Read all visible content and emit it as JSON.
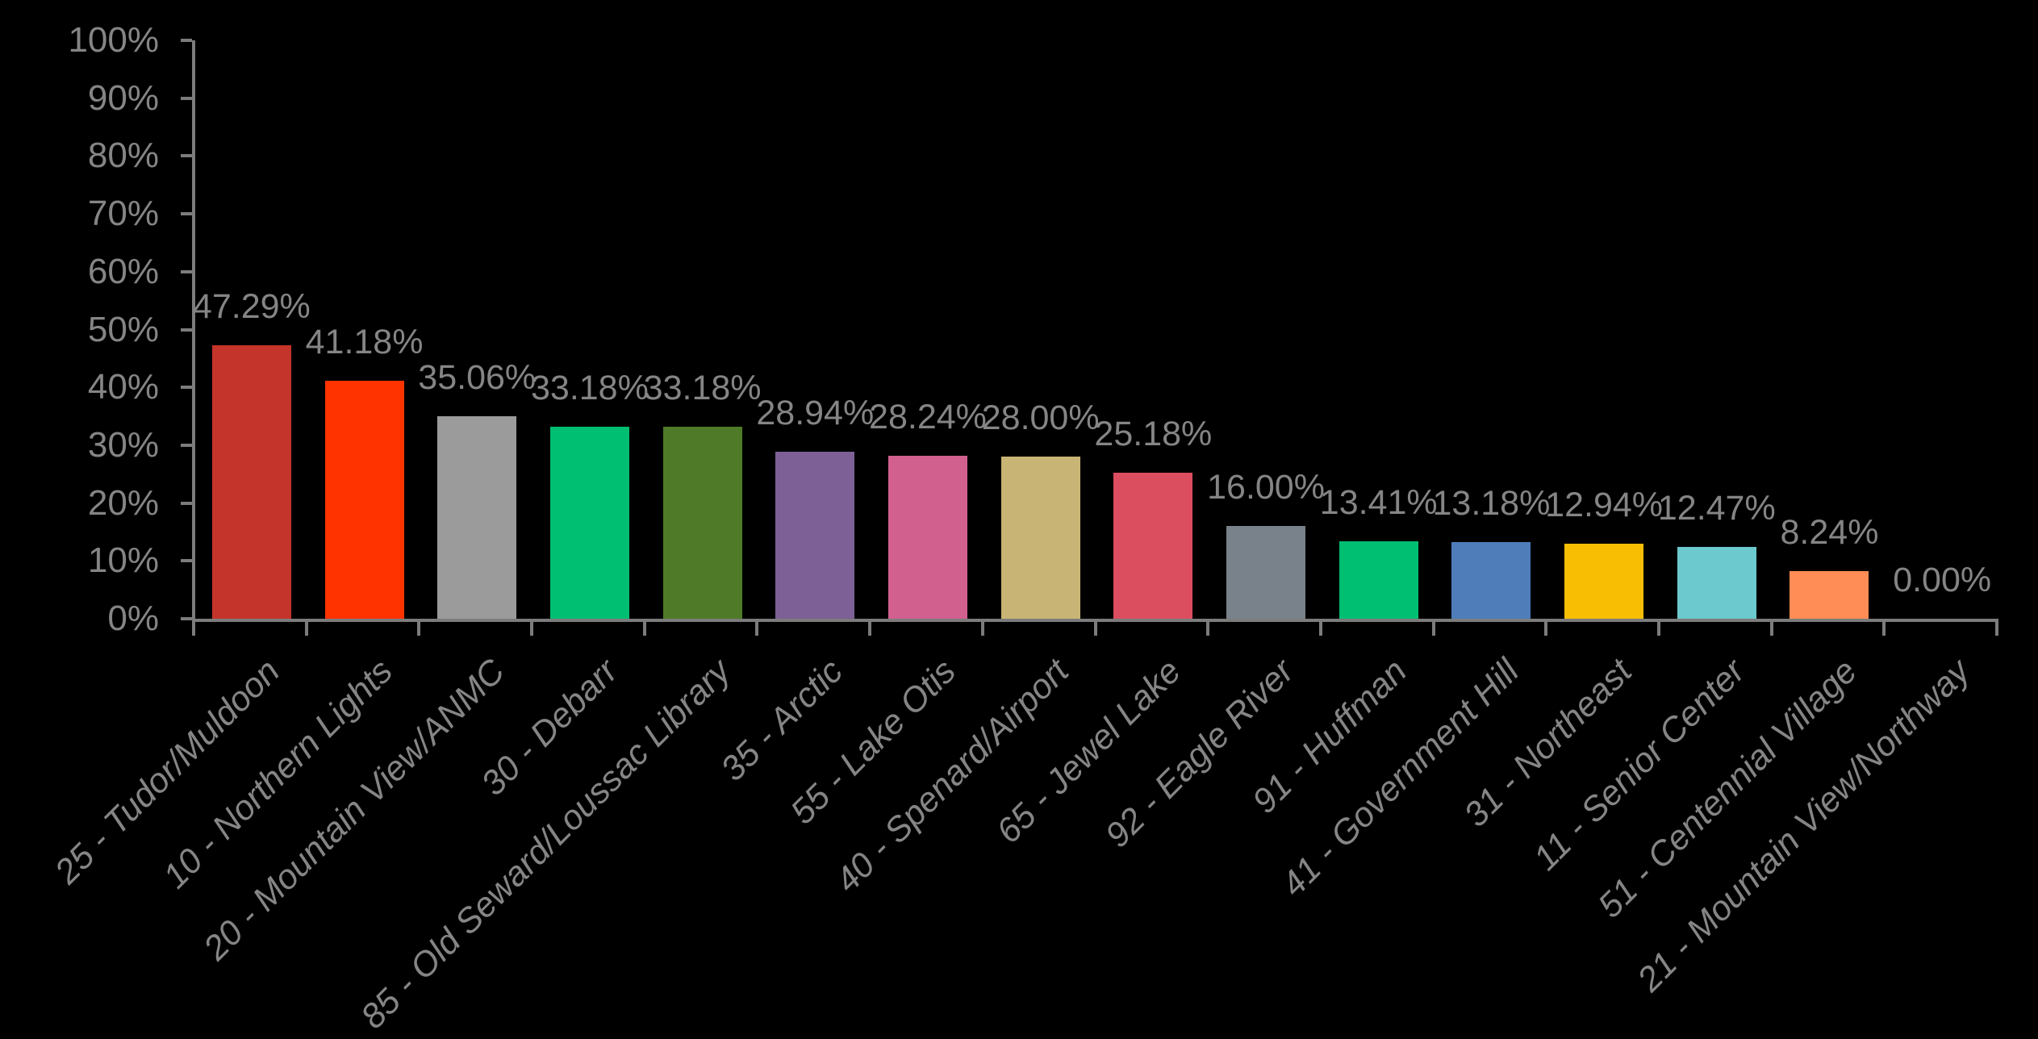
{
  "chart_data": {
    "type": "bar",
    "title": "",
    "xlabel": "",
    "ylabel": "",
    "categories": [
      "25 - Tudor/Muldoon",
      "10 - Northern Lights",
      "20 - Mountain View/ANMC",
      "30 - Debarr",
      "85 - Old Seward/Loussac Library",
      "35 - Arctic",
      "55 - Lake Otis",
      "40 - Spenard/Airport",
      "65 - Jewel Lake",
      "92 - Eagle River",
      "91 - Huffman",
      "41 - Government Hill",
      "31 - Northeast",
      "11 - Senior Center",
      "51 - Centennial Village",
      "21 - Mountain View/Northway"
    ],
    "values": [
      47.29,
      41.18,
      35.06,
      33.18,
      33.18,
      28.94,
      28.24,
      28.0,
      25.18,
      16.0,
      13.41,
      13.18,
      12.94,
      12.47,
      8.24,
      0.0
    ],
    "data_labels": [
      "47.29%",
      "41.18%",
      "35.06%",
      "33.18%",
      "33.18%",
      "28.94%",
      "28.24%",
      "28.00%",
      "25.18%",
      "16.00%",
      "13.41%",
      "13.18%",
      "12.94%",
      "12.47%",
      "8.24%",
      "0.00%"
    ],
    "bar_colors": [
      "#c4342b",
      "#ff3300",
      "#9b9b9b",
      "#00be72",
      "#4f7a28",
      "#7d6095",
      "#d2608f",
      "#c8b474",
      "#db4e60",
      "#79818a",
      "#00be72",
      "#4e7dba",
      "#f7be04",
      "#6cc9cd",
      "#ff8d55",
      "#ff8d55"
    ],
    "y_axis": {
      "min": 0,
      "max": 100,
      "step": 10,
      "tick_labels": [
        "0%",
        "10%",
        "20%",
        "30%",
        "40%",
        "50%",
        "60%",
        "70%",
        "80%",
        "90%",
        "100%"
      ]
    },
    "grid": false,
    "legend": false,
    "background_color": "#000000",
    "axis_color": "#7c7c7c",
    "text_color": "#858585"
  }
}
